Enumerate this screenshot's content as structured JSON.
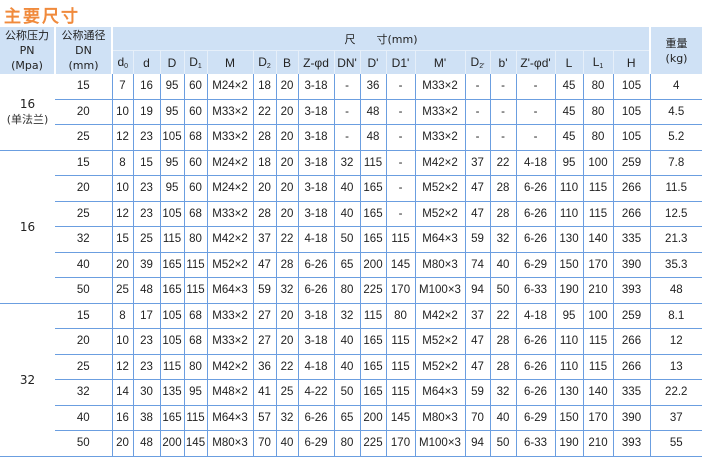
{
  "title": "主要尺寸",
  "header": {
    "pn": [
      "公称压力",
      "PN",
      "(Mpa)"
    ],
    "dn": [
      "公称通径",
      "DN",
      "(mm)"
    ],
    "dimensions": "尺      寸(mm)",
    "weight": [
      "重量",
      "(kg)"
    ],
    "columns": [
      {
        "main": "d",
        "sub": "0"
      },
      {
        "main": "d",
        "sub": ""
      },
      {
        "main": "D",
        "sub": ""
      },
      {
        "main": "D",
        "sub": "1"
      },
      {
        "main": "M",
        "sub": ""
      },
      {
        "main": "D",
        "sub": "2"
      },
      {
        "main": "B",
        "sub": ""
      },
      {
        "main": "Z-φd",
        "sub": ""
      },
      {
        "main": "DN'",
        "sub": ""
      },
      {
        "main": "D'",
        "sub": ""
      },
      {
        "main": "D1'",
        "sub": ""
      },
      {
        "main": "M'",
        "sub": ""
      },
      {
        "main": "D",
        "sub": "2'"
      },
      {
        "main": "b'",
        "sub": ""
      },
      {
        "main": "Z'-φd'",
        "sub": ""
      },
      {
        "main": "L",
        "sub": ""
      },
      {
        "main": "L",
        "sub": "1"
      },
      {
        "main": "H",
        "sub": ""
      }
    ]
  },
  "groups": [
    {
      "pn": "16",
      "pn_note": "(单法兰)",
      "rows": [
        [
          "15",
          "7",
          "16",
          "95",
          "60",
          "M24×2",
          "18",
          "20",
          "3-18",
          "-",
          "36",
          "-",
          "M33×2",
          "-",
          "-",
          "-",
          "45",
          "80",
          "105",
          "4"
        ],
        [
          "20",
          "10",
          "19",
          "95",
          "60",
          "M33×2",
          "22",
          "20",
          "3-18",
          "-",
          "48",
          "-",
          "M33×2",
          "-",
          "-",
          "-",
          "45",
          "80",
          "105",
          "4.5"
        ],
        [
          "25",
          "12",
          "23",
          "105",
          "68",
          "M33×2",
          "28",
          "20",
          "3-18",
          "-",
          "48",
          "-",
          "M33×2",
          "-",
          "-",
          "-",
          "45",
          "80",
          "105",
          "5.2"
        ]
      ]
    },
    {
      "pn": "16",
      "pn_note": "",
      "rows": [
        [
          "15",
          "8",
          "15",
          "95",
          "60",
          "M24×2",
          "18",
          "20",
          "3-18",
          "32",
          "115",
          "-",
          "M42×2",
          "37",
          "22",
          "4-18",
          "95",
          "100",
          "259",
          "7.8"
        ],
        [
          "20",
          "10",
          "23",
          "95",
          "60",
          "M24×2",
          "20",
          "20",
          "3-18",
          "40",
          "165",
          "-",
          "M52×2",
          "47",
          "28",
          "6-26",
          "110",
          "115",
          "266",
          "11.5"
        ],
        [
          "25",
          "12",
          "23",
          "105",
          "68",
          "M33×2",
          "28",
          "20",
          "3-18",
          "40",
          "165",
          "-",
          "M52×2",
          "47",
          "28",
          "6-26",
          "110",
          "115",
          "266",
          "12.5"
        ],
        [
          "32",
          "15",
          "25",
          "115",
          "80",
          "M42×2",
          "37",
          "22",
          "4-18",
          "50",
          "165",
          "115",
          "M64×3",
          "59",
          "32",
          "6-26",
          "130",
          "140",
          "335",
          "21.3"
        ],
        [
          "40",
          "20",
          "39",
          "165",
          "115",
          "M52×2",
          "47",
          "28",
          "6-26",
          "65",
          "200",
          "145",
          "M80×3",
          "74",
          "40",
          "6-29",
          "150",
          "170",
          "390",
          "35.3"
        ],
        [
          "50",
          "25",
          "48",
          "165",
          "115",
          "M64×3",
          "59",
          "32",
          "6-26",
          "80",
          "225",
          "170",
          "M100×3",
          "94",
          "50",
          "6-33",
          "190",
          "210",
          "393",
          "48"
        ]
      ]
    },
    {
      "pn": "32",
      "pn_note": "",
      "rows": [
        [
          "15",
          "8",
          "17",
          "105",
          "68",
          "M33×2",
          "27",
          "20",
          "3-18",
          "32",
          "115",
          "80",
          "M42×2",
          "37",
          "22",
          "4-18",
          "95",
          "100",
          "259",
          "8.1"
        ],
        [
          "20",
          "10",
          "23",
          "105",
          "68",
          "M33×2",
          "27",
          "20",
          "3-18",
          "40",
          "165",
          "115",
          "M52×2",
          "47",
          "28",
          "6-26",
          "110",
          "115",
          "266",
          "12"
        ],
        [
          "25",
          "12",
          "23",
          "115",
          "80",
          "M42×2",
          "36",
          "22",
          "4-18",
          "40",
          "165",
          "115",
          "M52×2",
          "47",
          "28",
          "6-26",
          "110",
          "115",
          "266",
          "13"
        ],
        [
          "32",
          "14",
          "30",
          "135",
          "95",
          "M48×2",
          "41",
          "25",
          "4-22",
          "50",
          "165",
          "115",
          "M64×3",
          "59",
          "32",
          "6-26",
          "130",
          "140",
          "335",
          "22.2"
        ],
        [
          "40",
          "16",
          "38",
          "165",
          "115",
          "M64×3",
          "57",
          "32",
          "6-26",
          "65",
          "200",
          "145",
          "M80×3",
          "70",
          "40",
          "6-29",
          "150",
          "170",
          "390",
          "37"
        ],
        [
          "50",
          "20",
          "48",
          "200",
          "145",
          "M80×3",
          "70",
          "40",
          "6-29",
          "80",
          "225",
          "170",
          "M100×3",
          "94",
          "50",
          "6-33",
          "190",
          "210",
          "393",
          "55"
        ]
      ]
    }
  ]
}
